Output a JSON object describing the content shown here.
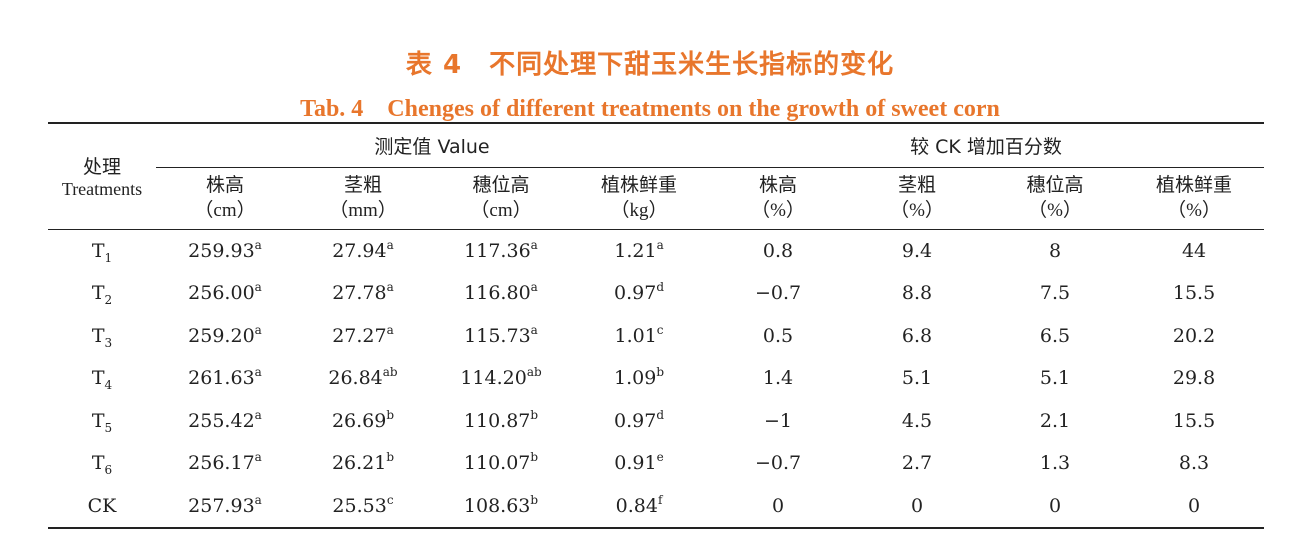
{
  "caption": {
    "cn": "表 4　不同处理下甜玉米生长指标的变化",
    "en": "Tab. 4　Chenges of different treatments on the growth of sweet corn"
  },
  "header": {
    "treatment_cn": "处理",
    "treatment_en": "Treatments",
    "group_value": "测定值 Value",
    "group_increase": "较 CK 增加百分数",
    "columns": [
      {
        "name": "株高",
        "unit": "（cm）"
      },
      {
        "name": "茎粗",
        "unit": "（mm）"
      },
      {
        "name": "穗位高",
        "unit": "（cm）"
      },
      {
        "name": "植株鲜重",
        "unit": "（kg）"
      },
      {
        "name": "株高",
        "unit": "（%）"
      },
      {
        "name": "茎粗",
        "unit": "（%）"
      },
      {
        "name": "穗位高",
        "unit": "（%）"
      },
      {
        "name": "植株鲜重",
        "unit": "（%）"
      }
    ]
  },
  "rows": [
    {
      "t": "T",
      "tsub": "1",
      "c": [
        {
          "v": "259.93",
          "s": "a"
        },
        {
          "v": "27.94",
          "s": "a"
        },
        {
          "v": "117.36",
          "s": "a"
        },
        {
          "v": "1.21",
          "s": "a"
        },
        {
          "v": "0.8",
          "s": ""
        },
        {
          "v": "9.4",
          "s": ""
        },
        {
          "v": "8",
          "s": ""
        },
        {
          "v": "44",
          "s": ""
        }
      ]
    },
    {
      "t": "T",
      "tsub": "2",
      "c": [
        {
          "v": "256.00",
          "s": "a"
        },
        {
          "v": "27.78",
          "s": "a"
        },
        {
          "v": "116.80",
          "s": "a"
        },
        {
          "v": "0.97",
          "s": "d"
        },
        {
          "v": "−0.7",
          "s": ""
        },
        {
          "v": "8.8",
          "s": ""
        },
        {
          "v": "7.5",
          "s": ""
        },
        {
          "v": "15.5",
          "s": ""
        }
      ]
    },
    {
      "t": "T",
      "tsub": "3",
      "c": [
        {
          "v": "259.20",
          "s": "a"
        },
        {
          "v": "27.27",
          "s": "a"
        },
        {
          "v": "115.73",
          "s": "a"
        },
        {
          "v": "1.01",
          "s": "c"
        },
        {
          "v": "0.5",
          "s": ""
        },
        {
          "v": "6.8",
          "s": ""
        },
        {
          "v": "6.5",
          "s": ""
        },
        {
          "v": "20.2",
          "s": ""
        }
      ]
    },
    {
      "t": "T",
      "tsub": "4",
      "c": [
        {
          "v": "261.63",
          "s": "a"
        },
        {
          "v": "26.84",
          "s": "ab"
        },
        {
          "v": "114.20",
          "s": "ab"
        },
        {
          "v": "1.09",
          "s": "b"
        },
        {
          "v": "1.4",
          "s": ""
        },
        {
          "v": "5.1",
          "s": ""
        },
        {
          "v": "5.1",
          "s": ""
        },
        {
          "v": "29.8",
          "s": ""
        }
      ]
    },
    {
      "t": "T",
      "tsub": "5",
      "c": [
        {
          "v": "255.42",
          "s": "a"
        },
        {
          "v": "26.69",
          "s": "b"
        },
        {
          "v": "110.87",
          "s": "b"
        },
        {
          "v": "0.97",
          "s": "d"
        },
        {
          "v": "−1",
          "s": ""
        },
        {
          "v": "4.5",
          "s": ""
        },
        {
          "v": "2.1",
          "s": ""
        },
        {
          "v": "15.5",
          "s": ""
        }
      ]
    },
    {
      "t": "T",
      "tsub": "6",
      "c": [
        {
          "v": "256.17",
          "s": "a"
        },
        {
          "v": "26.21",
          "s": "b"
        },
        {
          "v": "110.07",
          "s": "b"
        },
        {
          "v": "0.91",
          "s": "e"
        },
        {
          "v": "−0.7",
          "s": ""
        },
        {
          "v": "2.7",
          "s": ""
        },
        {
          "v": "1.3",
          "s": ""
        },
        {
          "v": "8.3",
          "s": ""
        }
      ]
    },
    {
      "t": "CK",
      "tsub": "",
      "c": [
        {
          "v": "257.93",
          "s": "a"
        },
        {
          "v": "25.53",
          "s": "c"
        },
        {
          "v": "108.63",
          "s": "b"
        },
        {
          "v": "0.84",
          "s": "f"
        },
        {
          "v": "0",
          "s": ""
        },
        {
          "v": "0",
          "s": ""
        },
        {
          "v": "0",
          "s": ""
        },
        {
          "v": "0",
          "s": ""
        }
      ]
    }
  ]
}
